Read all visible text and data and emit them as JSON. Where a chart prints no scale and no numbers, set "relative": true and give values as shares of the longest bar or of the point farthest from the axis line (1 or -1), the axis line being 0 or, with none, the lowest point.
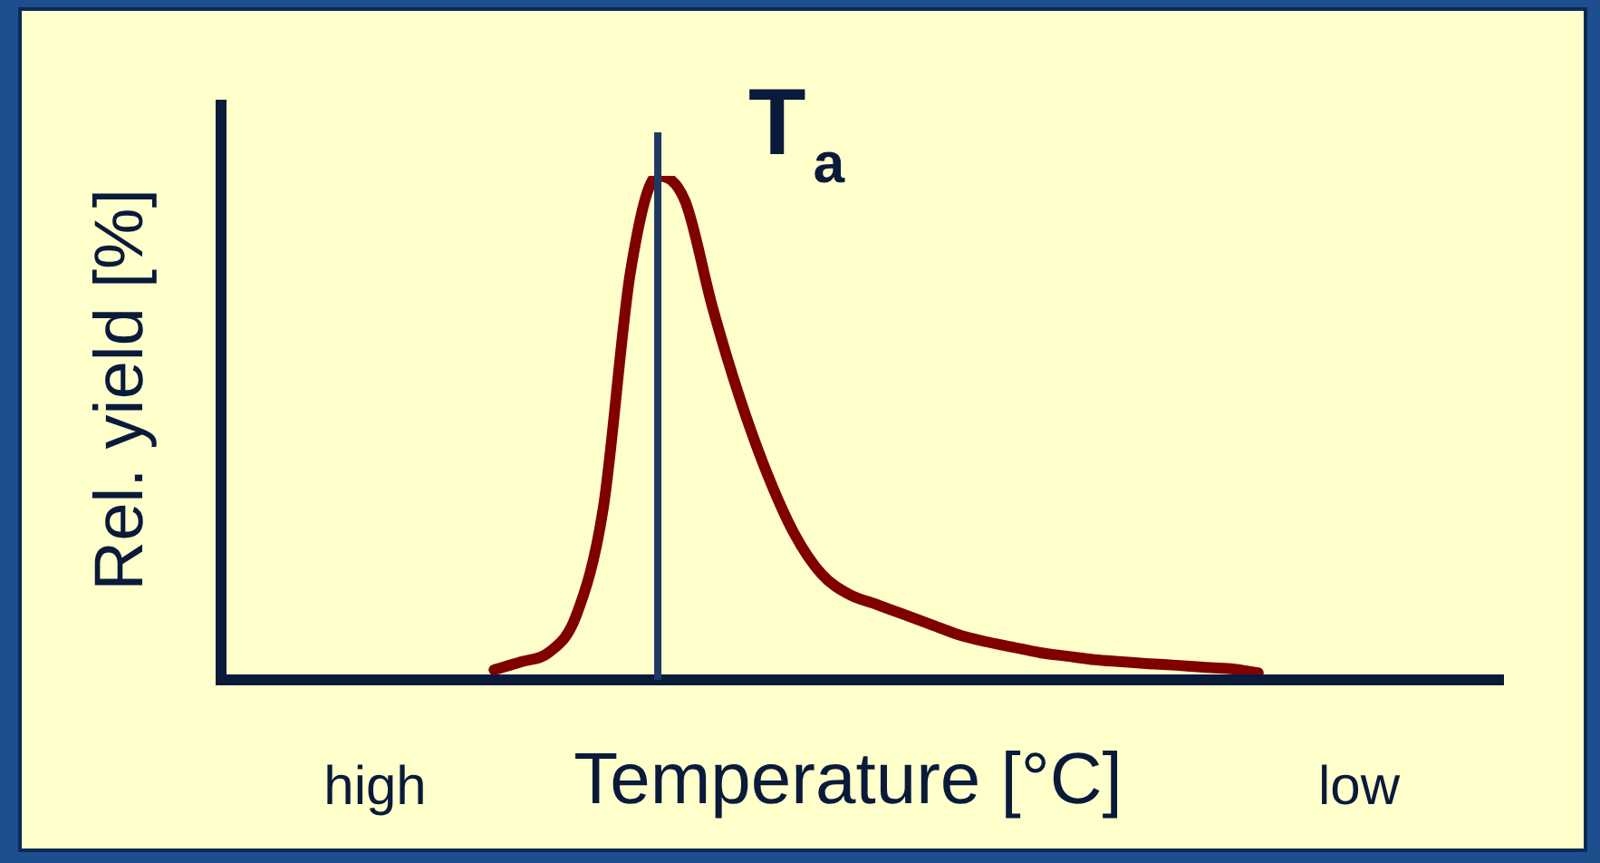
{
  "chart_data": {
    "type": "line",
    "relative": true,
    "xlabel": "Temperature [°C]",
    "ylabel": "Rel. yield [%]",
    "categories": [
      null,
      null,
      null,
      null,
      null,
      null,
      null,
      null,
      null,
      null,
      null,
      null,
      null,
      null,
      null,
      null,
      null,
      null,
      null,
      null,
      null,
      null,
      null,
      null,
      null,
      null,
      null,
      null,
      null,
      null,
      null,
      null,
      null,
      null,
      null,
      null,
      null,
      null,
      null,
      null,
      null,
      null,
      null,
      null,
      null,
      null,
      null,
      null
    ],
    "series": [
      {
        "color": "#800000",
        "values": [
          null,
          null,
          null,
          null,
          null,
          null,
          null,
          null,
          null,
          null,
          0.02,
          0.036,
          0.054,
          0.126,
          0.34,
          0.81,
          1.0,
          0.95,
          0.74,
          0.56,
          0.41,
          0.29,
          0.21,
          0.17,
          0.15,
          0.13,
          0.11,
          0.09,
          0.076,
          0.065,
          0.054,
          0.047,
          0.04,
          0.036,
          0.032,
          0.029,
          0.025,
          0.022,
          0.014,
          null,
          null,
          null,
          null,
          null,
          null,
          null,
          null,
          null
        ]
      }
    ],
    "annotations": [
      "T$_{a}$",
      "high",
      "low"
    ],
    "legend": false,
    "marker": "none",
    "line_style": "solid"
  }
}
